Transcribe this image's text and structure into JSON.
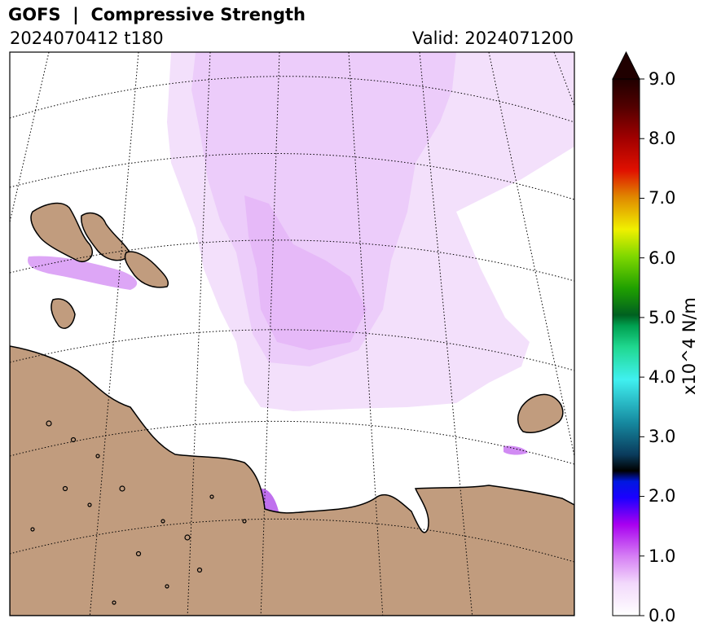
{
  "title": "GOFS  |  Compressive Strength",
  "init_label": "2024070412 t180",
  "valid_label": "Valid: 2024071200",
  "colorbar": {
    "unit_label": "x10^4 N/m",
    "ticks": [
      "0.0",
      "1.0",
      "2.0",
      "3.0",
      "4.0",
      "5.0",
      "6.0",
      "7.0",
      "8.0",
      "9.0"
    ],
    "min": 0,
    "max": 9,
    "extend": "max"
  },
  "colors": {
    "land": "#c19c7e",
    "coastline": "#000000",
    "graticule": "#000000",
    "ice_light": "#f3e0fb",
    "ice_mid": "#e6b9f8",
    "ice_strong": "#d18bf3",
    "ice_peak": "#b55aea"
  }
}
